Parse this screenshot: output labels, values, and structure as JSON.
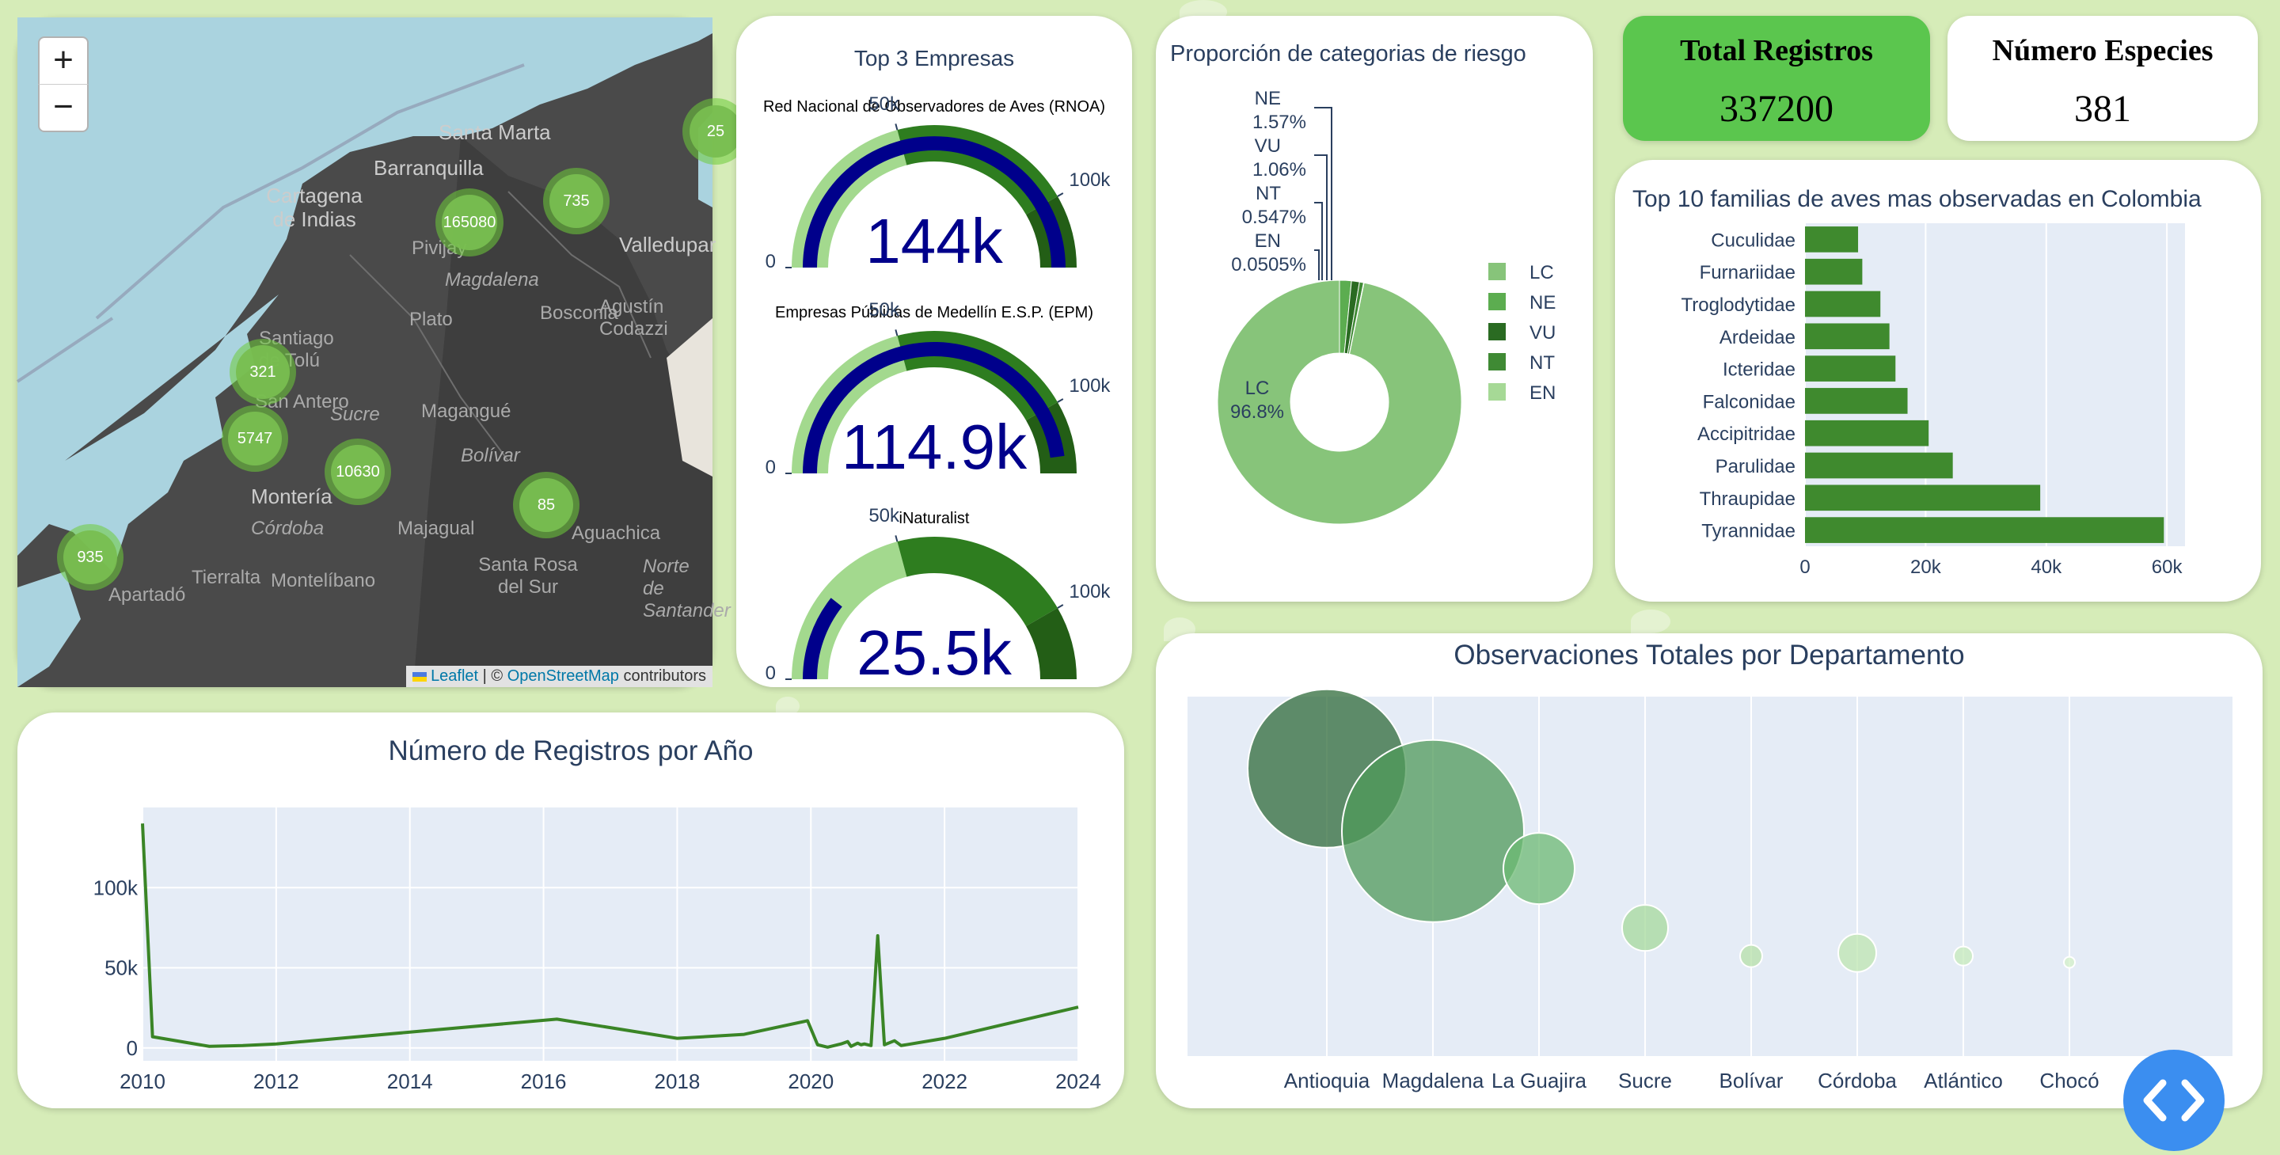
{
  "map": {
    "zoom_in": "+",
    "zoom_out": "−",
    "clusters": [
      "25",
      "165080",
      "735",
      "321",
      "5747",
      "10630",
      "85",
      "935"
    ],
    "places": [
      "Santa Marta",
      "Barranquilla",
      "Cartagena de Indias",
      "Valledupar",
      "Magdalena",
      "Bosconia",
      "Plato",
      "Agustín Codazzi",
      "Santiago de Tolú",
      "San Antero",
      "Sucre",
      "Magangué",
      "Bolívar",
      "Montería",
      "Córdoba",
      "Majagual",
      "Aguachica",
      "Santa Rosa del Sur",
      "Tierralta",
      "Montelíbano",
      "Apartadó",
      "Norte de Santander",
      "Pivijay"
    ],
    "attribution": {
      "leaflet": "Leaflet",
      "sep": " | © ",
      "osm": "OpenStreetMap",
      "tail": " contributors"
    }
  },
  "kpis": {
    "total_title": "Total Registros",
    "total_value": "337200",
    "species_title": "Número Especies",
    "species_value": "381"
  },
  "gauges": {
    "title": "Top 3 Empresas",
    "items": [
      {
        "name": "Red Nacional de Observadores de Aves (RNOA)",
        "value": 144000,
        "display": "144k"
      },
      {
        "name": "Empresas Públicas de Medellín E.S.P. (EPM)",
        "value": 114900,
        "display": "114.9k"
      },
      {
        "name": "iNaturalist",
        "value": 25500,
        "display": "25.5k"
      }
    ],
    "ticks": [
      "0",
      "50k",
      "100k"
    ]
  },
  "pie": {
    "title": "Proporción de categorias de riesgo",
    "labels": [
      {
        "cat": "NE",
        "pct": "1.57%"
      },
      {
        "cat": "VU",
        "pct": "1.06%"
      },
      {
        "cat": "NT",
        "pct": "0.547%"
      },
      {
        "cat": "EN",
        "pct": "0.0505%"
      }
    ],
    "lc_label": "LC",
    "lc_pct": "96.8%",
    "legend": [
      "LC",
      "NE",
      "VU",
      "NT",
      "EN"
    ]
  },
  "families": {
    "title": "Top 10 familias de aves mas observadas en Colombia",
    "xticks": [
      "0",
      "20k",
      "40k",
      "60k"
    ]
  },
  "years": {
    "title": "Número de Registros por Año",
    "xticks": [
      "2010",
      "2012",
      "2014",
      "2016",
      "2018",
      "2020",
      "2022",
      "2024"
    ],
    "yticks": [
      "0",
      "50k",
      "100k"
    ]
  },
  "departments": {
    "title": "Observaciones Totales por Departamento"
  },
  "colors": {
    "green_dark": "#2f6b1f",
    "green_bar": "#3f8a2e",
    "gauge_navy": "#00008b",
    "kpi_green": "#5bc64e",
    "pie_lc": "#87c47a"
  },
  "chart_data": [
    {
      "type": "bar",
      "orientation": "horizontal",
      "title": "Top 10 familias de aves mas observadas en Colombia",
      "categories": [
        "Cuculidae",
        "Furnariidae",
        "Troglodytidae",
        "Ardeidae",
        "Icteridae",
        "Falconidae",
        "Accipitridae",
        "Parulidae",
        "Thraupidae",
        "Tyrannidae"
      ],
      "values": [
        8800,
        9500,
        12500,
        14000,
        15000,
        17000,
        20500,
        24500,
        39000,
        59500
      ],
      "xlim": [
        0,
        63000
      ]
    },
    {
      "type": "line",
      "title": "Número de Registros por Año",
      "x": [
        2010,
        2010.15,
        2011,
        2011.5,
        2012,
        2016.2,
        2018,
        2019,
        2019.95,
        2020.1,
        2020.25,
        2020.45,
        2020.55,
        2020.6,
        2020.7,
        2020.75,
        2020.8,
        2020.9,
        2021.0,
        2021.1,
        2021.25,
        2021.35,
        2022,
        2024
      ],
      "y": [
        140000,
        7000,
        1000,
        1500,
        2500,
        18000,
        6000,
        8500,
        17000,
        2000,
        500,
        2500,
        4000,
        1000,
        3000,
        2000,
        2500,
        1500,
        70000,
        2000,
        4500,
        1500,
        6000,
        25500
      ],
      "xlim": [
        2010,
        2024
      ],
      "ylim": [
        -8000,
        150000
      ]
    },
    {
      "type": "pie",
      "title": "Proporción de categorias de riesgo",
      "labels": [
        "LC",
        "NE",
        "VU",
        "NT",
        "EN"
      ],
      "values": [
        96.8,
        1.57,
        1.06,
        0.547,
        0.0505
      ],
      "hole": true,
      "legend": "right"
    },
    {
      "type": "scatter",
      "subtype": "bubble",
      "title": "Observaciones Totales por Departamento",
      "categories": [
        "Antioquia",
        "Magdalena",
        "La Guajira",
        "Sucre",
        "Bolívar",
        "Córdoba",
        "Atlántico",
        "Chocó"
      ],
      "y": [
        92000,
        72000,
        60000,
        41000,
        32000,
        33000,
        32000,
        30000
      ],
      "size": [
        100,
        115,
        45,
        29,
        14,
        24,
        12,
        7
      ],
      "ylim": [
        0,
        115000
      ]
    }
  ]
}
